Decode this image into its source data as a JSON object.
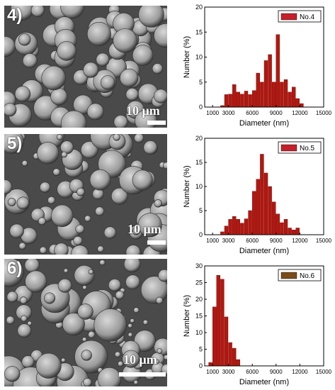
{
  "panels": [
    {
      "label": "4)",
      "scale_label": "10 μm",
      "chart_data": {
        "type": "bar",
        "legend": "No.4",
        "color": "#b5160f",
        "legend_swatch": "#c4202b",
        "xlabel": "Diameter (nm)",
        "ylabel": "Number (%)",
        "xlim": [
          0,
          15000
        ],
        "ylim": [
          0,
          20
        ],
        "yticks": [
          0,
          5,
          10,
          15,
          20
        ],
        "xticks": [
          1000,
          3000,
          6000,
          9000,
          12000,
          15000
        ],
        "bin_width": 500,
        "x": [
          2000,
          2500,
          3000,
          3500,
          4000,
          4500,
          5000,
          5500,
          6000,
          6500,
          7000,
          7500,
          8000,
          8500,
          9000,
          9500,
          10000,
          10500,
          11000,
          11500,
          12000
        ],
        "values": [
          0.3,
          2.5,
          2.6,
          4.5,
          3.0,
          2.6,
          3.2,
          2.5,
          3.3,
          6.8,
          5.0,
          9.3,
          10.5,
          5.0,
          14.5,
          5.0,
          5.5,
          3.0,
          4.0,
          1.7,
          0.7
        ]
      }
    },
    {
      "label": "5)",
      "scale_label": "10 μm",
      "chart_data": {
        "type": "bar",
        "legend": "No.5",
        "color": "#b5160f",
        "legend_swatch": "#c4202b",
        "xlabel": "Diameter (nm)",
        "ylabel": "Number (%)",
        "xlim": [
          0,
          15000
        ],
        "ylim": [
          0,
          20
        ],
        "yticks": [
          0,
          5,
          10,
          15,
          20
        ],
        "xticks": [
          1000,
          3000,
          6000,
          9000,
          12000,
          15000
        ],
        "bin_width": 500,
        "x": [
          2000,
          2500,
          3000,
          3500,
          4000,
          4500,
          5000,
          5500,
          6000,
          6500,
          7000,
          7500,
          8000,
          8500,
          9000,
          9500,
          10000,
          10500,
          11000,
          11500
        ],
        "values": [
          0.6,
          1.8,
          3.2,
          3.8,
          3.2,
          2.4,
          3.3,
          5.0,
          9.0,
          11.5,
          16.7,
          12.8,
          10.0,
          6.8,
          4.3,
          2.5,
          3.2,
          1.4,
          1.0,
          1.4
        ]
      }
    },
    {
      "label": "6)",
      "scale_label": "10 μm",
      "chart_data": {
        "type": "bar",
        "legend": "No.6",
        "color": "#b5160f",
        "legend_swatch": "#7a4a18",
        "xlabel": "Diameter (nm)",
        "ylabel": "Number (%)",
        "xlim": [
          0,
          15000
        ],
        "ylim": [
          0,
          30
        ],
        "yticks": [
          0,
          5,
          10,
          15,
          20,
          25,
          30
        ],
        "xticks": [
          1000,
          3000,
          6000,
          9000,
          12000,
          15000
        ],
        "bin_width": 500,
        "x": [
          500,
          1000,
          1500,
          2000,
          2500,
          3000,
          3500,
          4000
        ],
        "values": [
          1.0,
          17.7,
          27.2,
          26.0,
          14.7,
          7.0,
          5.3,
          1.9
        ]
      }
    }
  ]
}
